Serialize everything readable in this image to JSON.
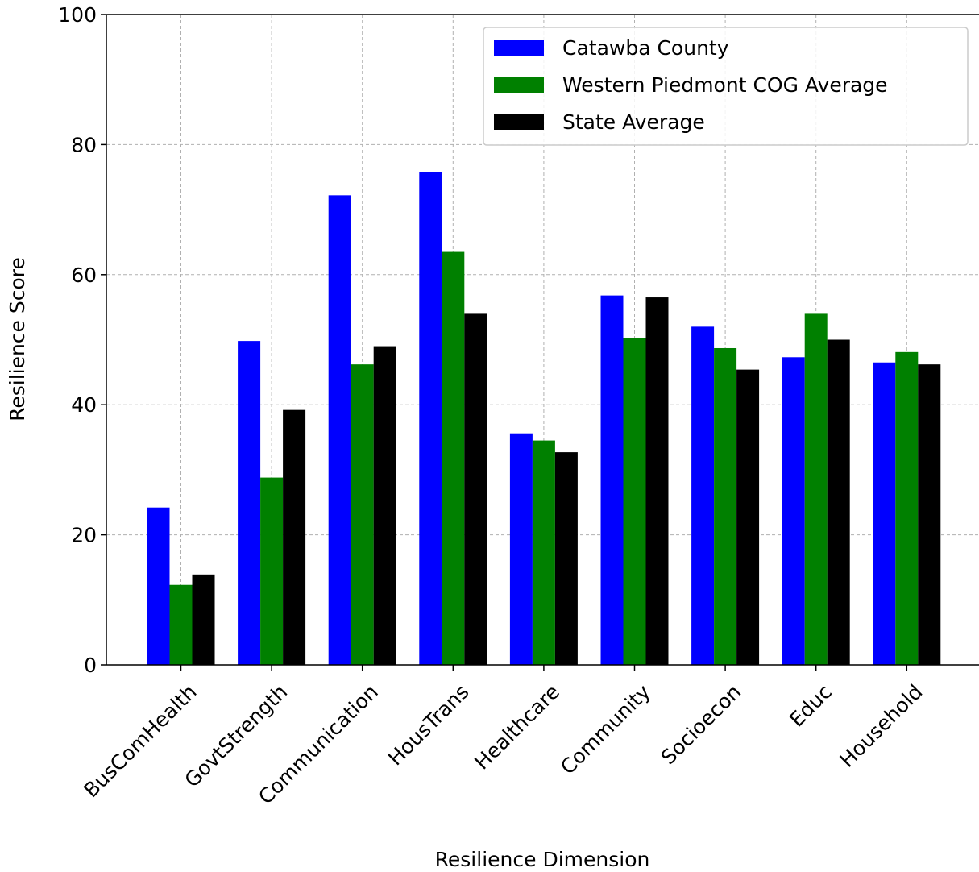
{
  "chart_data": {
    "type": "bar",
    "title": "",
    "xlabel": "Resilience Dimension",
    "ylabel": "Resilience Score",
    "ylim": [
      0,
      100
    ],
    "yticks": [
      0,
      20,
      40,
      60,
      80,
      100
    ],
    "grid": true,
    "legend_position": "top-right",
    "categories": [
      "BusComHealth",
      "GovtStrength",
      "Communication",
      "HousTrans",
      "Healthcare",
      "Community",
      "Socioecon",
      "Educ",
      "Household"
    ],
    "series": [
      {
        "name": "Catawba County",
        "color": "#0000ff",
        "values": [
          24.2,
          49.8,
          72.2,
          75.8,
          35.6,
          56.8,
          52.0,
          47.3,
          46.5
        ]
      },
      {
        "name": "Western Piedmont COG Average",
        "color": "#008000",
        "values": [
          12.3,
          28.8,
          46.2,
          63.5,
          34.5,
          50.3,
          48.7,
          54.1,
          48.1
        ]
      },
      {
        "name": "State Average",
        "color": "#000000",
        "values": [
          13.9,
          39.2,
          49.0,
          54.1,
          32.7,
          56.5,
          45.4,
          50.0,
          46.2
        ]
      }
    ]
  }
}
